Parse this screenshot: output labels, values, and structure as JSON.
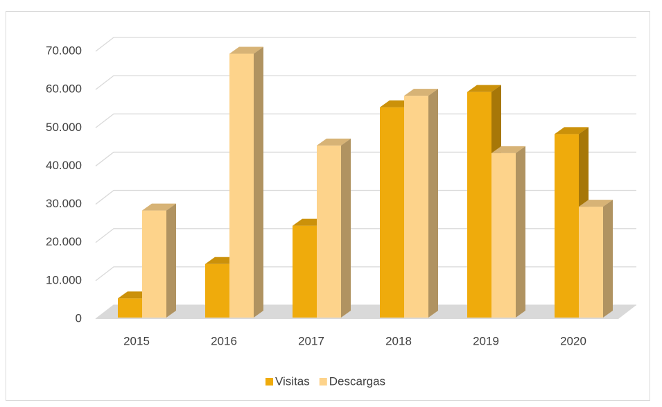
{
  "chart_data": {
    "type": "bar3d",
    "categories": [
      "2015",
      "2016",
      "2017",
      "2018",
      "2019",
      "2020"
    ],
    "series": [
      {
        "name": "Visitas",
        "color": "#efab0c",
        "values": [
          5000,
          14000,
          24000,
          55000,
          59000,
          48000
        ]
      },
      {
        "name": "Descargas",
        "color": "#fdd38b",
        "values": [
          28000,
          69000,
          45000,
          58000,
          43000,
          29000
        ]
      }
    ],
    "ylim": [
      0,
      70000
    ],
    "yticks": [
      0,
      {
        "value": 10000,
        "label": "10.000"
      },
      {
        "value": 20000,
        "label": "20.000"
      },
      {
        "value": 30000,
        "label": "30.000"
      },
      {
        "value": 40000,
        "label": "40.000"
      },
      {
        "value": 50000,
        "label": "50.000"
      },
      {
        "value": 60000,
        "label": "60.000"
      },
      {
        "value": 70000,
        "label": "70.000"
      }
    ],
    "grid": true,
    "legend": "bottom"
  }
}
